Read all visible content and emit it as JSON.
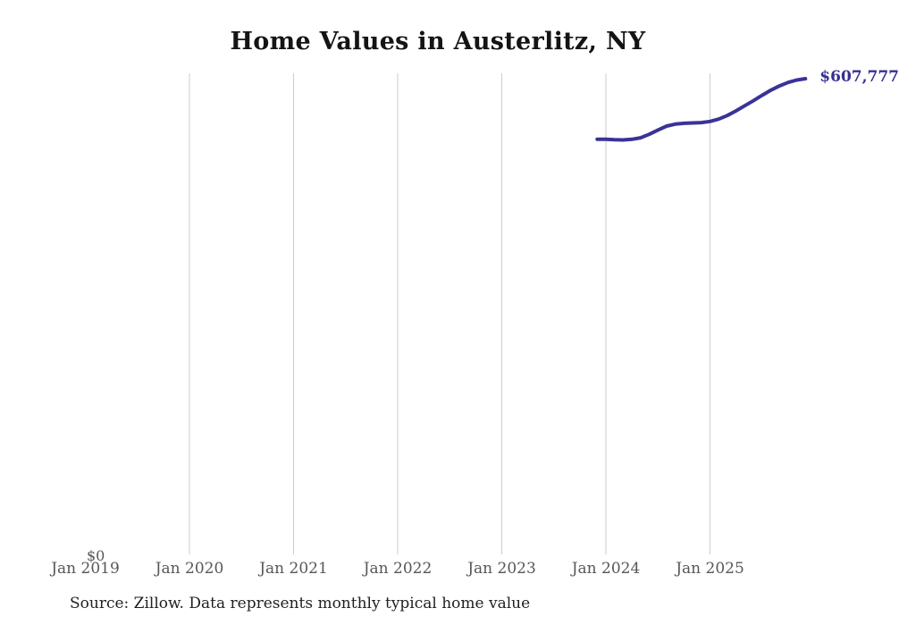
{
  "chart_data": {
    "type": "line",
    "title": "Home Values in Austerlitz, NY",
    "x": [
      "Dec 2023",
      "Jan 2024",
      "Feb 2024",
      "Mar 2024",
      "Apr 2024",
      "May 2024",
      "Jun 2024",
      "Jul 2024",
      "Aug 2024",
      "Sep 2024",
      "Oct 2024",
      "Nov 2024",
      "Dec 2024",
      "Jan 2025",
      "Feb 2025",
      "Mar 2025",
      "Apr 2025",
      "May 2025",
      "Jun 2025",
      "Jul 2025",
      "Aug 2025",
      "Sep 2025",
      "Oct 2025",
      "Nov 2025",
      "Dec 2025"
    ],
    "values": [
      530000,
      530000,
      529400,
      529200,
      530000,
      532000,
      536500,
      542000,
      547000,
      549500,
      550500,
      551000,
      551500,
      553000,
      556000,
      560500,
      566500,
      573000,
      579500,
      586500,
      593000,
      598500,
      603000,
      606000,
      607777
    ],
    "series_name": "Monthly typical home value",
    "end_label": "$607,777",
    "y_zero_label": "$0",
    "x_ticks": [
      {
        "label": "Jan 2019",
        "has_gridline": false
      },
      {
        "label": "Jan 2020",
        "has_gridline": true
      },
      {
        "label": "Jan 2021",
        "has_gridline": true
      },
      {
        "label": "Jan 2022",
        "has_gridline": true
      },
      {
        "label": "Jan 2023",
        "has_gridline": true
      },
      {
        "label": "Jan 2024",
        "has_gridline": true
      },
      {
        "label": "Jan 2025",
        "has_gridline": true
      }
    ],
    "ylim": [
      0,
      615000
    ],
    "grid": "vertical-only",
    "legend": "none",
    "colors": {
      "line": "#3a3397",
      "end_label": "#36308f",
      "grid": "#cccccc",
      "tick_label": "#575757",
      "title": "#141414"
    }
  },
  "footer": {
    "source_text": "Source: Zillow. Data represents monthly typical home value"
  }
}
